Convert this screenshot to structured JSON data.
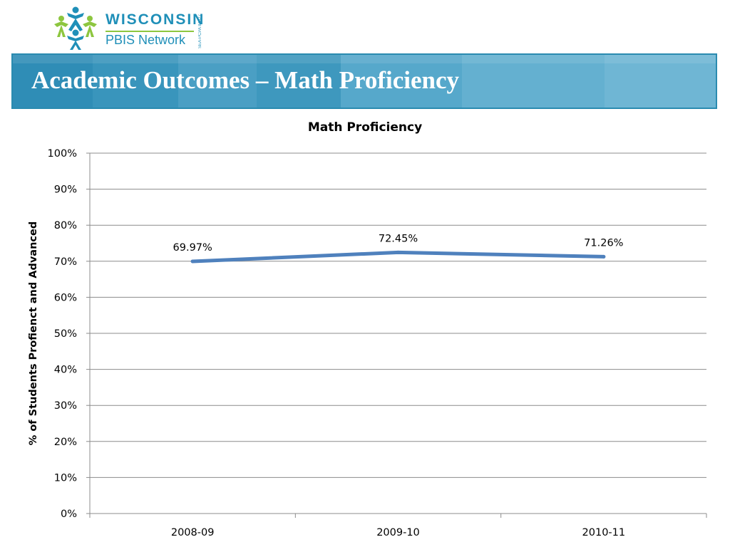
{
  "logo": {
    "word1": "WISCONSIN",
    "word2": "PBIS Network",
    "vertical_text": "SEA-PCPA 84027",
    "colors": {
      "blue": "#1f8fb8",
      "green": "#8dc63f"
    }
  },
  "header": {
    "title": "Academic Outcomes – Math Proficiency",
    "banner_color": "#3d99bf"
  },
  "chart_data": {
    "type": "line",
    "title": "Math Proficiency",
    "xlabel": "",
    "ylabel": "% of Students Profienct and Advanced",
    "categories": [
      "2008-09",
      "2009-10",
      "2010-11"
    ],
    "series": [
      {
        "values": [
          69.97,
          72.45,
          71.26
        ],
        "labels": [
          "69.97%",
          "72.45%",
          "71.26%"
        ],
        "color": "#4f81bd"
      }
    ],
    "ylim": [
      0,
      100
    ],
    "yticks": [
      "0%",
      "10%",
      "20%",
      "30%",
      "40%",
      "50%",
      "60%",
      "70%",
      "80%",
      "90%",
      "100%"
    ],
    "grid": true,
    "legend": "none"
  }
}
